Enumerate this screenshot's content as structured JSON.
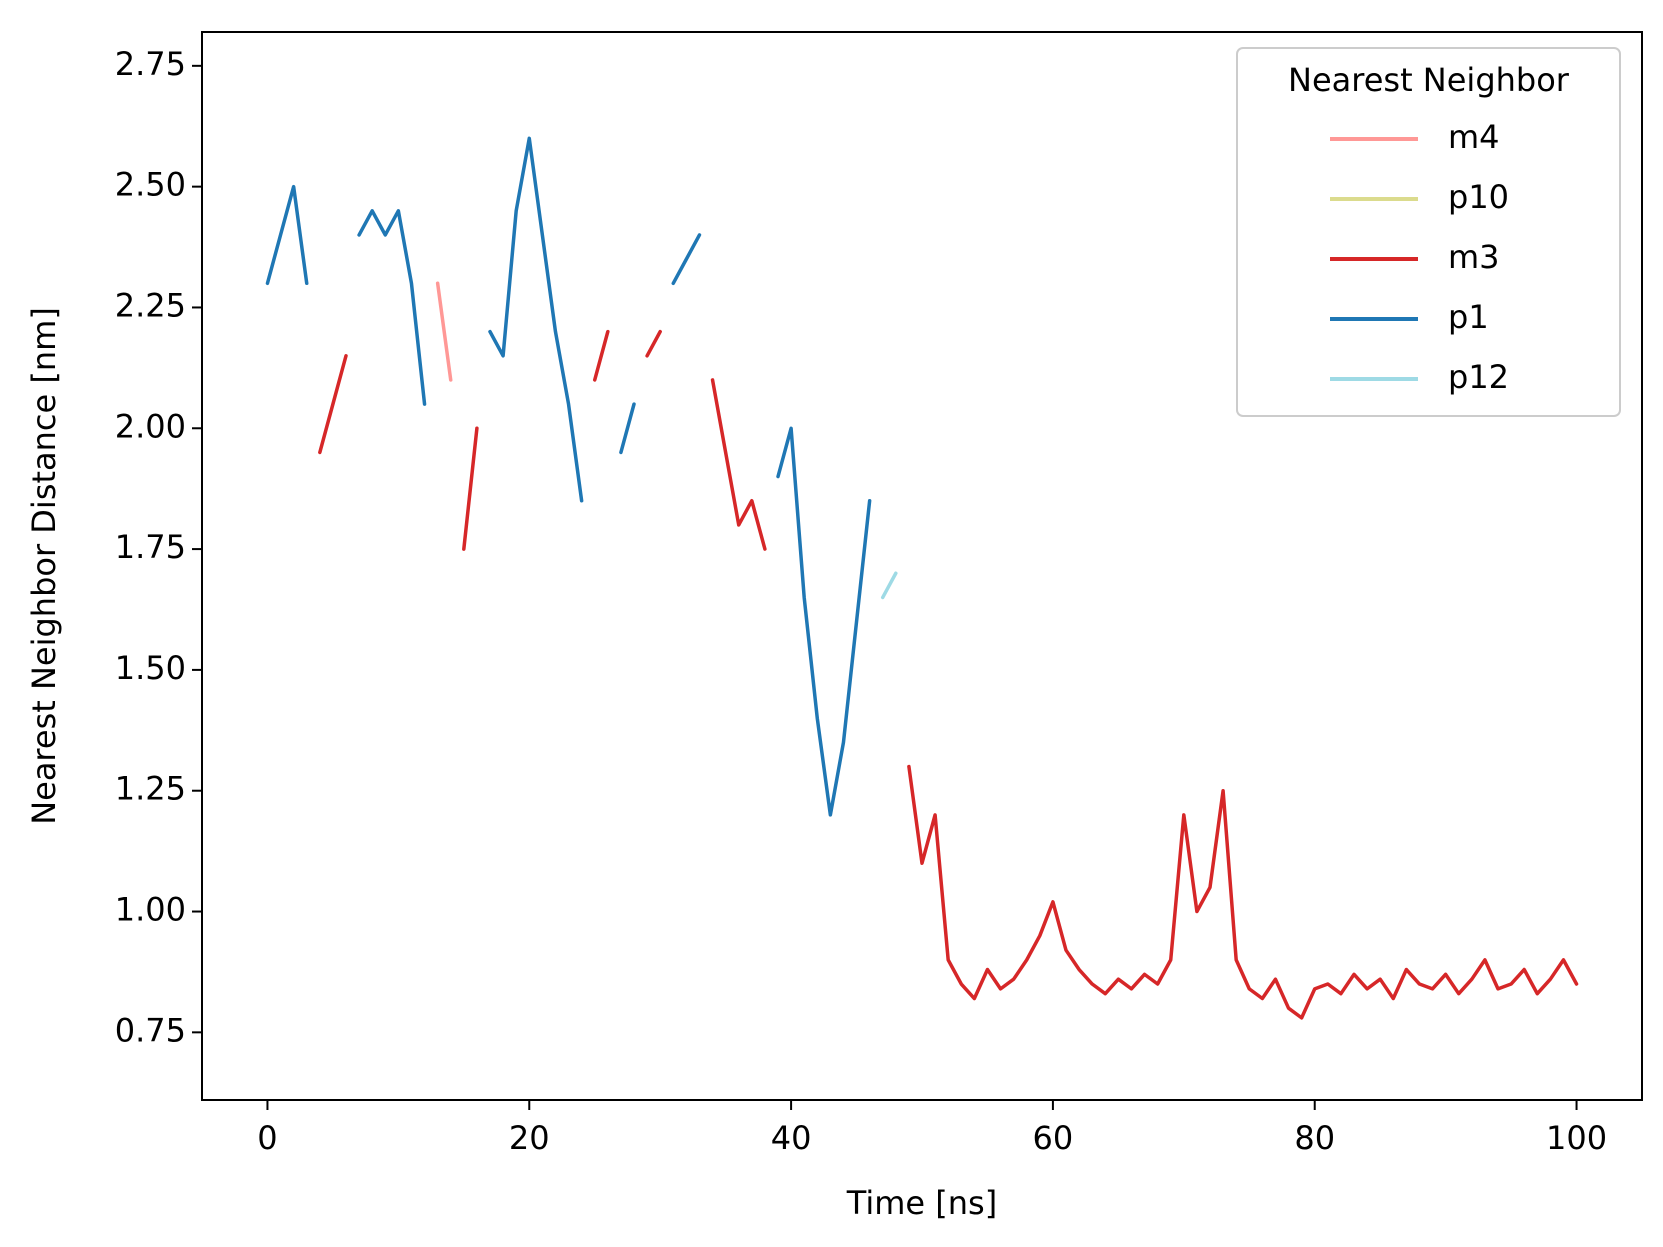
{
  "chart_data": {
    "type": "line",
    "xlabel": "Time [ns]",
    "ylabel": "Nearest Neighbor Distance [nm]",
    "legend_title": "Nearest Neighbor",
    "legend": "upper right",
    "xlim": [
      -5,
      105
    ],
    "ylim": [
      0.61,
      2.82
    ],
    "xticks": [
      0,
      20,
      40,
      60,
      80,
      100
    ],
    "yticks": [
      0.75,
      {
        "value": 1,
        "label": "1.00"
      },
      1.25,
      {
        "value": 1.5,
        "label": "1.50"
      },
      1.75,
      {
        "value": 2,
        "label": "2.00"
      },
      2.25,
      {
        "value": 2.5,
        "label": "2.50"
      },
      2.75
    ],
    "x": [
      0,
      1,
      2,
      3,
      4,
      5,
      6,
      7,
      8,
      9,
      10,
      11,
      12,
      13,
      14,
      15,
      16,
      17,
      18,
      19,
      20,
      21,
      22,
      23,
      24,
      25,
      26,
      27,
      28,
      29,
      30,
      31,
      32,
      33,
      34,
      35,
      36,
      37,
      38,
      39,
      40,
      41,
      42,
      43,
      44,
      45,
      46,
      47,
      48,
      49,
      50,
      51,
      52,
      53,
      54,
      55,
      56,
      57,
      58,
      59,
      60,
      61,
      62,
      63,
      64,
      65,
      66,
      67,
      68,
      69,
      70,
      71,
      72,
      73,
      74,
      75,
      76,
      77,
      78,
      79,
      80,
      81,
      82,
      83,
      84,
      85,
      86,
      87,
      88,
      89,
      90,
      91,
      92,
      93,
      94,
      95,
      96,
      97,
      98,
      99,
      100
    ],
    "series": [
      {
        "name": "m4",
        "color": "#ff9896",
        "values": [
          null,
          null,
          null,
          null,
          null,
          null,
          null,
          null,
          null,
          null,
          null,
          null,
          null,
          2.3,
          2.1,
          null,
          null,
          null,
          null,
          null,
          null,
          null,
          null,
          null,
          null,
          null,
          null,
          null,
          null,
          null,
          null,
          null,
          null,
          null,
          null,
          null,
          null,
          null,
          null,
          null,
          null,
          null,
          null,
          null,
          null,
          null,
          null,
          null,
          null,
          null,
          null,
          null,
          null,
          null,
          null,
          null,
          null,
          null,
          null,
          null,
          null,
          null,
          null,
          null,
          null,
          null,
          null,
          null,
          null,
          null,
          null,
          null,
          null,
          null,
          null,
          null,
          null,
          null,
          null,
          null,
          null,
          null,
          null,
          null,
          null,
          null,
          null,
          null,
          null,
          null,
          null,
          null,
          null,
          null,
          null,
          null,
          null,
          null,
          null,
          null,
          null
        ]
      },
      {
        "name": "p10",
        "color": "#dbdb8d",
        "values": [
          null,
          null,
          null,
          null,
          null,
          null,
          null,
          null,
          null,
          null,
          null,
          null,
          null,
          null,
          null,
          null,
          null,
          null,
          null,
          null,
          null,
          null,
          null,
          null,
          null,
          null,
          null,
          null,
          null,
          null,
          null,
          null,
          null,
          null,
          null,
          null,
          null,
          null,
          null,
          null,
          null,
          null,
          null,
          null,
          null,
          null,
          null,
          null,
          null,
          null,
          null,
          null,
          null,
          null,
          null,
          null,
          null,
          null,
          null,
          null,
          null,
          null,
          null,
          null,
          null,
          null,
          null,
          null,
          null,
          null,
          null,
          null,
          null,
          null,
          null,
          null,
          null,
          null,
          null,
          null,
          null,
          null,
          null,
          null,
          null,
          null,
          null,
          null,
          null,
          null,
          null,
          null,
          null,
          null,
          null,
          null,
          null,
          null,
          null,
          null,
          null
        ]
      },
      {
        "name": "m3",
        "color": "#d62728",
        "values": [
          null,
          null,
          null,
          null,
          1.95,
          2.05,
          2.15,
          null,
          null,
          null,
          null,
          null,
          null,
          null,
          null,
          1.75,
          2.0,
          null,
          null,
          null,
          null,
          null,
          null,
          null,
          null,
          2.1,
          2.2,
          null,
          null,
          2.15,
          2.2,
          null,
          null,
          null,
          2.1,
          1.95,
          1.8,
          1.85,
          1.75,
          null,
          null,
          null,
          null,
          null,
          null,
          null,
          null,
          null,
          null,
          1.3,
          1.1,
          1.2,
          0.9,
          0.85,
          0.82,
          0.88,
          0.84,
          0.86,
          0.9,
          0.95,
          1.02,
          0.92,
          0.88,
          0.85,
          0.83,
          0.86,
          0.84,
          0.87,
          0.85,
          0.9,
          1.2,
          1.0,
          1.05,
          1.25,
          0.9,
          0.84,
          0.82,
          0.86,
          0.8,
          0.78,
          0.84,
          0.85,
          0.83,
          0.87,
          0.84,
          0.86,
          0.82,
          0.88,
          0.85,
          0.84,
          0.87,
          0.83,
          0.86,
          0.9,
          0.84,
          0.85,
          0.88,
          0.83,
          0.86,
          0.9,
          0.85
        ]
      },
      {
        "name": "p1",
        "color": "#1f77b4",
        "values": [
          2.3,
          2.4,
          2.5,
          2.3,
          null,
          null,
          null,
          2.4,
          2.45,
          2.4,
          2.45,
          2.3,
          2.05,
          null,
          null,
          null,
          null,
          2.2,
          2.15,
          2.45,
          2.6,
          2.4,
          2.2,
          2.05,
          1.85,
          null,
          null,
          1.95,
          2.05,
          null,
          null,
          2.3,
          2.35,
          2.4,
          null,
          null,
          null,
          null,
          null,
          1.9,
          2.0,
          1.65,
          1.4,
          1.2,
          1.35,
          1.6,
          1.85,
          null,
          null,
          null,
          null,
          null,
          null,
          null,
          null,
          null,
          null,
          null,
          null,
          null,
          null,
          null,
          null,
          null,
          null,
          null,
          null,
          null,
          null,
          null,
          null,
          null,
          null,
          null,
          null,
          null,
          null,
          null,
          null,
          null,
          null,
          null,
          null,
          null,
          null,
          null,
          null,
          null,
          null,
          null,
          null,
          null,
          null,
          null,
          null,
          null,
          null,
          null,
          null,
          null,
          null
        ]
      },
      {
        "name": "p12",
        "color": "#9edae5",
        "values": [
          null,
          null,
          null,
          null,
          null,
          null,
          null,
          null,
          null,
          null,
          null,
          null,
          null,
          null,
          null,
          null,
          null,
          null,
          null,
          null,
          null,
          null,
          null,
          null,
          null,
          null,
          null,
          null,
          null,
          null,
          null,
          null,
          null,
          null,
          null,
          null,
          null,
          null,
          null,
          null,
          null,
          null,
          null,
          null,
          null,
          null,
          null,
          1.65,
          1.7,
          null,
          null,
          null,
          null,
          null,
          null,
          null,
          null,
          null,
          null,
          null,
          null,
          null,
          null,
          null,
          null,
          null,
          null,
          null,
          null,
          null,
          null,
          null,
          null,
          null,
          null,
          null,
          null,
          null,
          null,
          null,
          null,
          null,
          null,
          null,
          null,
          null,
          null,
          null,
          null,
          null,
          null,
          null,
          null,
          null,
          null,
          null,
          null,
          null,
          null,
          null,
          null
        ]
      }
    ]
  }
}
